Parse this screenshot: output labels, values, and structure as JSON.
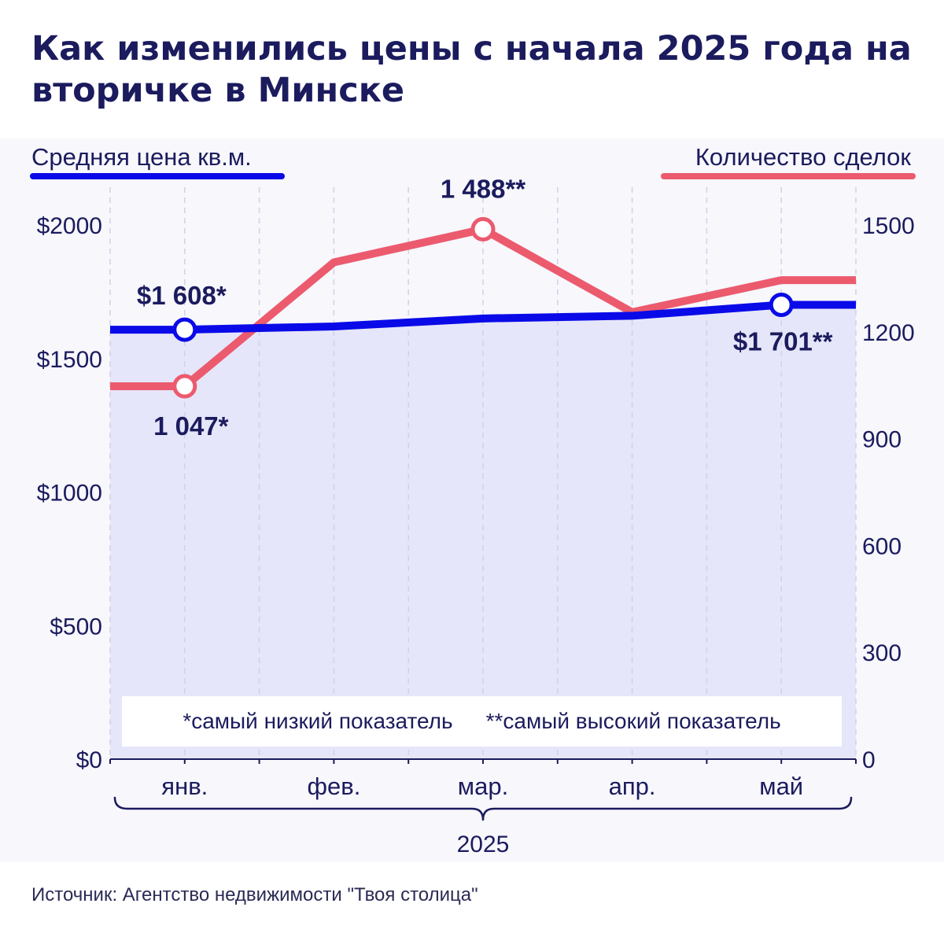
{
  "title": "Как изменились цены с начала 2025 года на вторичке в Минске",
  "legend": {
    "left": "Средняя цена кв.м.",
    "right": "Количество сделок"
  },
  "footnotes": {
    "low": "*самый низкий показатель",
    "high": "**самый высокий показатель"
  },
  "source": "Источник: Агентство недвижимости \"Твоя столица\"",
  "colors": {
    "price": "#0a0ae8",
    "deals": "#ec5a6e",
    "area": "#e6e6fa",
    "text": "#1b1b5e"
  },
  "chart_data": {
    "type": "line",
    "x_group_label": "2025",
    "categories": [
      "янв.",
      "фев.",
      "мар.",
      "апр.",
      "май"
    ],
    "y_left": {
      "ticks": [
        "$0",
        "$500",
        "$1000",
        "$1500",
        "$2000"
      ],
      "tick_values": [
        0,
        500,
        1000,
        1500,
        2000
      ],
      "ylim": [
        0,
        2000
      ]
    },
    "y_right": {
      "ticks": [
        "0",
        "300",
        "600",
        "900",
        "1200",
        "1500"
      ],
      "tick_values": [
        0,
        300,
        600,
        900,
        1200,
        1500
      ],
      "ylim": [
        0,
        1500
      ]
    },
    "series": [
      {
        "name": "Средняя цена кв.м.",
        "axis": "left",
        "values": [
          1608,
          1620,
          1650,
          1660,
          1701
        ]
      },
      {
        "name": "Количество сделок",
        "axis": "right",
        "values": [
          1047,
          1395,
          1488,
          1255,
          1345
        ]
      }
    ],
    "annotations": [
      {
        "series": 0,
        "index": 0,
        "text": "$1 608*"
      },
      {
        "series": 0,
        "index": 4,
        "text": "$1 701**"
      },
      {
        "series": 1,
        "index": 0,
        "text": "1 047*"
      },
      {
        "series": 1,
        "index": 2,
        "text": "1 488**"
      }
    ],
    "grid": "vertical-dashed"
  }
}
